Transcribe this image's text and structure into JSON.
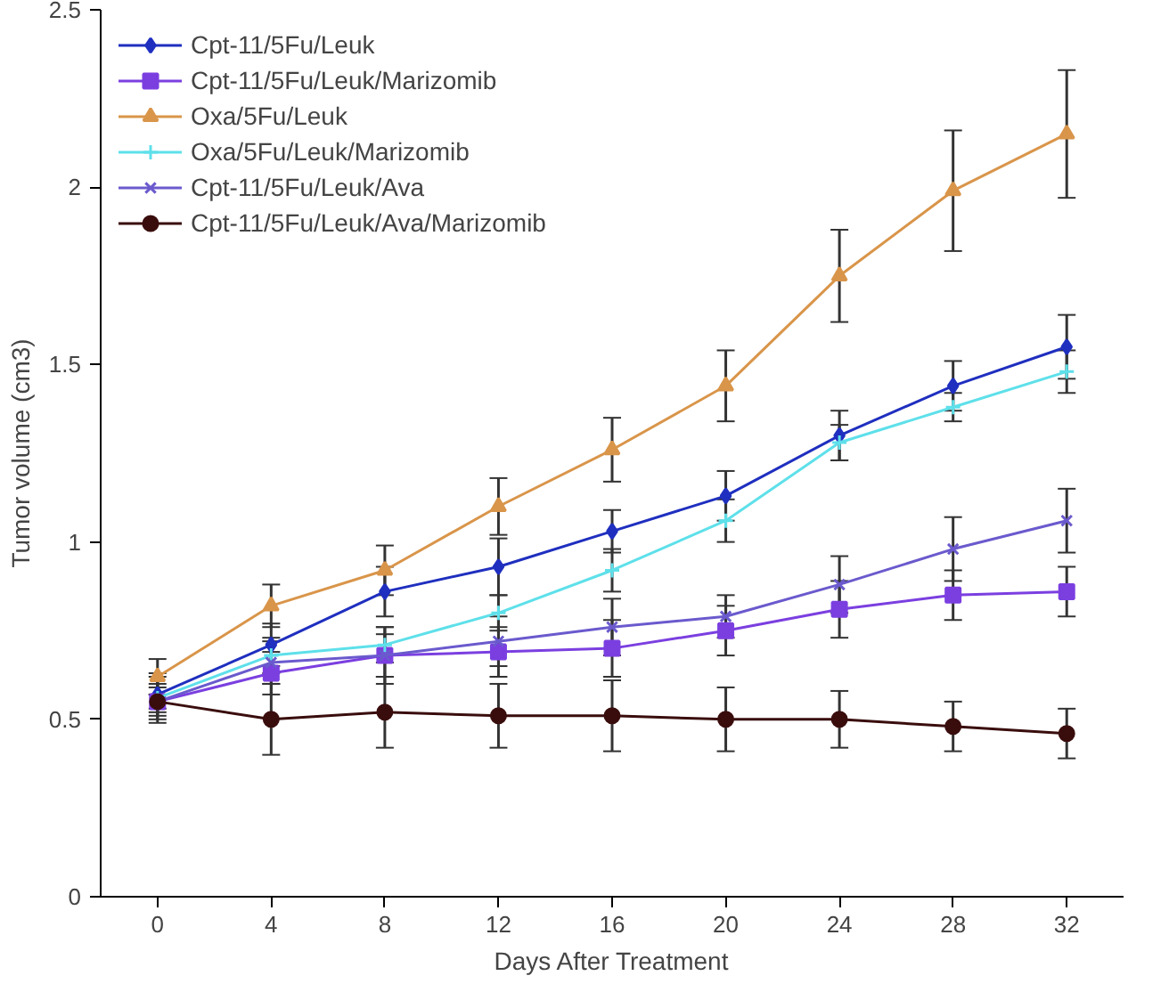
{
  "chart_data": {
    "type": "line",
    "xlabel": "Days After Treatment",
    "ylabel": "Tumor volume (cm3)",
    "x": [
      0,
      4,
      8,
      12,
      16,
      20,
      24,
      28,
      32
    ],
    "xlim": [
      -2,
      34
    ],
    "xticks": [
      0,
      4,
      8,
      12,
      16,
      20,
      24,
      28,
      32
    ],
    "ylim": [
      0,
      2.5
    ],
    "yticks": [
      0,
      0.5,
      1,
      1.5,
      2,
      2.5
    ],
    "grid": false,
    "legend": "top left",
    "series": [
      {
        "name": "Cpt-11/5Fu/Leuk",
        "color": "#1f2fbf",
        "marker": "diamond",
        "values": [
          0.57,
          0.71,
          0.86,
          0.93,
          1.03,
          1.13,
          1.3,
          1.44,
          1.55
        ],
        "errors": [
          0.05,
          0.06,
          0.07,
          0.08,
          0.06,
          0.07,
          0.07,
          0.07,
          0.09
        ]
      },
      {
        "name": "Cpt-11/5Fu/Leuk/Marizomib",
        "color": "#7b3fe0",
        "marker": "square",
        "values": [
          0.55,
          0.63,
          0.68,
          0.69,
          0.7,
          0.75,
          0.81,
          0.85,
          0.86
        ],
        "errors": [
          0.04,
          0.06,
          0.06,
          0.07,
          0.08,
          0.07,
          0.08,
          0.07,
          0.07
        ]
      },
      {
        "name": "Oxa/5Fu/Leuk",
        "color": "#d9954a",
        "marker": "triangle",
        "values": [
          0.62,
          0.82,
          0.92,
          1.1,
          1.26,
          1.44,
          1.75,
          1.99,
          2.15
        ],
        "errors": [
          0.05,
          0.06,
          0.07,
          0.08,
          0.09,
          0.1,
          0.13,
          0.17,
          0.18
        ]
      },
      {
        "name": "Oxa/5Fu/Leuk/Marizomib",
        "color": "#5ee0ea",
        "marker": "cross",
        "values": [
          0.56,
          0.68,
          0.71,
          0.8,
          0.92,
          1.06,
          1.28,
          1.38,
          1.48
        ],
        "errors": [
          0.07,
          0.05,
          0.05,
          0.05,
          0.06,
          0.06,
          0.05,
          0.04,
          0.06
        ]
      },
      {
        "name": "Cpt-11/5Fu/Leuk/Ava",
        "color": "#6a5acd",
        "marker": "x",
        "values": [
          0.55,
          0.66,
          0.68,
          0.72,
          0.76,
          0.79,
          0.88,
          0.98,
          1.06
        ],
        "errors": [
          0.02,
          0.06,
          0.08,
          0.07,
          0.08,
          0.06,
          0.08,
          0.09,
          0.09
        ]
      },
      {
        "name": "Cpt-11/5Fu/Leuk/Ava/Marizomib",
        "color": "#3a0d0d",
        "marker": "circle",
        "values": [
          0.55,
          0.5,
          0.52,
          0.51,
          0.51,
          0.5,
          0.5,
          0.48,
          0.46
        ],
        "errors": [
          0.05,
          0.1,
          0.1,
          0.09,
          0.1,
          0.09,
          0.08,
          0.07,
          0.07
        ]
      }
    ]
  }
}
